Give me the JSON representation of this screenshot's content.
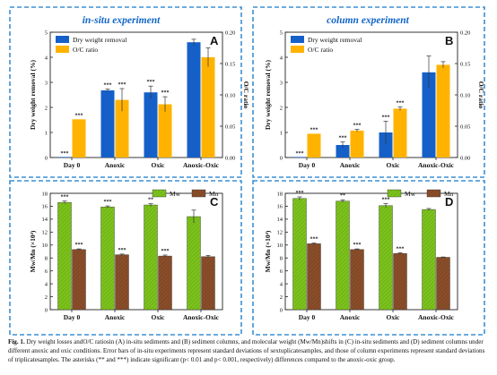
{
  "colors": {
    "frame": "#3b8fd4",
    "blue": "#1560c8",
    "orange": "#ffb300",
    "green": "#7cc21c",
    "brown": "#8a4e2a",
    "title_blue": "#1266c8"
  },
  "caption": {
    "label": "Fig. 1.",
    "text": "Dry weight losses andO/C ratiosin (A) in-situ sediments and (B) sediment columns, and molecular weight (Mw/Mn)shifts in (C) in-situ sediments and (D) sediment columns under different anoxic and oxic conditions. Error bars of in-situ experiments represent standard deviations of sextuplicatesamples, and those of column experiments represent standard deviations of triplicatesamples. The asterisks (** and ***) indicate significant (p< 0.01 and p< 0.001, respectively) differences compared to the anoxic-oxic group."
  },
  "chart_data": [
    {
      "id": "A",
      "type": "bar",
      "group_title": "in-situ experiment",
      "categories": [
        "Day 0",
        "Anoxic",
        "Oxic",
        "Anoxic-Oxic"
      ],
      "ylabel": "Dry weight removal (%)",
      "y2label": "O/C ratio",
      "ylim": [
        0,
        5
      ],
      "yticks": [
        0,
        1,
        2,
        3,
        4,
        5
      ],
      "y2lim": [
        0,
        0.2
      ],
      "y2ticks": [
        "0.00",
        "0.05",
        "0.10",
        "0.15",
        "0.20"
      ],
      "legend": "top-center",
      "series": [
        {
          "name": "Dry weight removal",
          "axis": "left",
          "values": [
            0,
            2.68,
            2.6,
            4.6
          ],
          "err": [
            0,
            0.05,
            0.25,
            0.12
          ],
          "sig": [
            "***",
            "***",
            "***",
            ""
          ]
        },
        {
          "name": "O/C ratio",
          "axis": "right",
          "values": [
            0.061,
            0.092,
            0.085,
            0.16
          ],
          "err": [
            0,
            0.018,
            0.012,
            0.015
          ],
          "sig": [
            "***",
            "***",
            "***",
            ""
          ]
        }
      ]
    },
    {
      "id": "B",
      "type": "bar",
      "group_title": "column experiment",
      "categories": [
        "Day 0",
        "Anoxic",
        "Oxic",
        "Anoxic-Oxic"
      ],
      "ylabel": "Dry weight removal (%)",
      "y2label": "O/C ratio",
      "ylim": [
        0,
        5
      ],
      "yticks": [
        0,
        1,
        2,
        3,
        4,
        5
      ],
      "y2lim": [
        0,
        0.2
      ],
      "y2ticks": [
        "0.00",
        "0.05",
        "0.10",
        "0.15",
        "0.20"
      ],
      "legend": "top-center",
      "series": [
        {
          "name": "Dry weight removal",
          "axis": "left",
          "values": [
            0,
            0.5,
            1.0,
            3.4
          ],
          "err": [
            0,
            0.12,
            0.45,
            0.65
          ],
          "sig": [
            "***",
            "***",
            "***",
            ""
          ]
        },
        {
          "name": "O/C ratio",
          "axis": "right",
          "values": [
            0.038,
            0.043,
            0.078,
            0.148
          ],
          "err": [
            0,
            0.002,
            0.003,
            0.005
          ],
          "sig": [
            "***",
            "***",
            "***",
            ""
          ]
        }
      ]
    },
    {
      "id": "C",
      "type": "bar",
      "categories": [
        "Day 0",
        "Anoxic",
        "Oxic",
        "Anoxic-Oxic"
      ],
      "ylabel": "Mw/Mn (×10⁴)",
      "ylim": [
        0,
        18
      ],
      "yticks": [
        0,
        2,
        4,
        6,
        8,
        10,
        12,
        14,
        16,
        18
      ],
      "legend": "top-right",
      "series": [
        {
          "name": "Mw",
          "values": [
            16.6,
            15.9,
            16.2,
            14.4
          ],
          "err": [
            0.2,
            0.15,
            0.2,
            1.0
          ],
          "sig": [
            "***",
            "***",
            "**",
            ""
          ]
        },
        {
          "name": "Mn",
          "values": [
            9.3,
            8.5,
            8.3,
            8.2
          ],
          "err": [
            0.1,
            0.1,
            0.15,
            0.2
          ],
          "sig": [
            "***",
            "***",
            "***",
            ""
          ]
        }
      ]
    },
    {
      "id": "D",
      "type": "bar",
      "categories": [
        "Day 0",
        "Anoxic",
        "Oxic",
        "Anoxic-Oxic"
      ],
      "ylabel": "Mw/Mn (×10⁴)",
      "ylim": [
        0,
        18
      ],
      "yticks": [
        0,
        2,
        4,
        6,
        8,
        10,
        12,
        14,
        16,
        18
      ],
      "legend": "top-right",
      "series": [
        {
          "name": "Mw",
          "values": [
            17.2,
            16.8,
            16.1,
            15.5
          ],
          "err": [
            0.25,
            0.2,
            0.3,
            0.15
          ],
          "sig": [
            "***",
            "**",
            "***",
            ""
          ]
        },
        {
          "name": "Mn",
          "values": [
            10.2,
            9.3,
            8.7,
            8.1
          ],
          "err": [
            0.1,
            0.1,
            0.1,
            0.05
          ],
          "sig": [
            "***",
            "***",
            "***",
            ""
          ]
        }
      ]
    }
  ]
}
